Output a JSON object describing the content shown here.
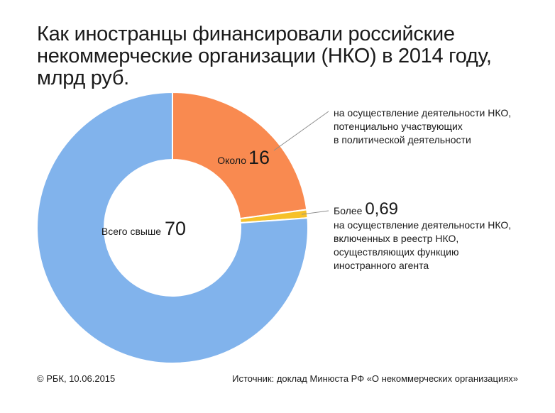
{
  "title_lines": [
    "Как иностранцы финансировали российские",
    "некоммерческие организации (НКО) в 2014 году,",
    "млрд руб."
  ],
  "chart_data": {
    "type": "pie",
    "title": "Как иностранцы финансировали российские некоммерческие организации (НКО) в 2014 году, млрд руб.",
    "total": 70,
    "total_prefix": "Всего свыше",
    "unit": "млрд руб.",
    "slices": [
      {
        "value": 16,
        "prefix": "Около",
        "label_lines": [
          "на осуществление деятельности НКО,",
          "потенциально участвующих",
          "в политической деятельности"
        ],
        "color": "#f98a50"
      },
      {
        "value": 0.69,
        "value_label": "0,69",
        "prefix": "Более",
        "label_lines": [
          "на осуществление деятельности НКО,",
          "включенных в реестр НКО,",
          "осуществляющих функцию",
          "иностранного агента"
        ],
        "color": "#f6c12a"
      },
      {
        "value": 53.31,
        "label_lines": [],
        "color": "#81b3ec"
      }
    ]
  },
  "center": {
    "prefix": "Всего свыше",
    "value": "70"
  },
  "slice1_label": {
    "prefix": "Около",
    "value": "16"
  },
  "footer": {
    "copyright": "© РБК, 10.06.2015",
    "source": "Источник: доклад Минюста РФ «О некоммерческих организациях»"
  }
}
